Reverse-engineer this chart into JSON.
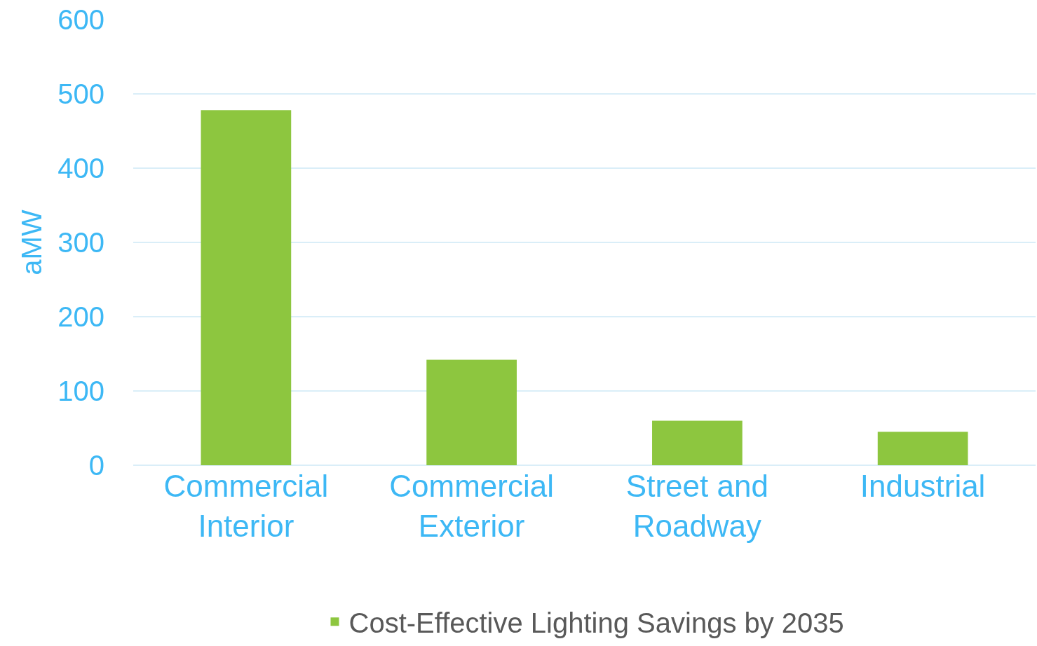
{
  "chart_data": {
    "type": "bar",
    "ylabel": "aMW",
    "categories": [
      "Commercial\nInterior",
      "Commercial\nExterior",
      "Street and\nRoadway",
      "Industrial"
    ],
    "series": [
      {
        "name": "Cost-Effective Lighting Savings by 2035",
        "color": "#8dc63f",
        "values": [
          478,
          142,
          60,
          45
        ]
      }
    ],
    "ylim": [
      0,
      600
    ],
    "yticks": [
      0,
      100,
      200,
      300,
      400,
      500,
      600
    ],
    "grid": "y",
    "legend": "bottom"
  }
}
